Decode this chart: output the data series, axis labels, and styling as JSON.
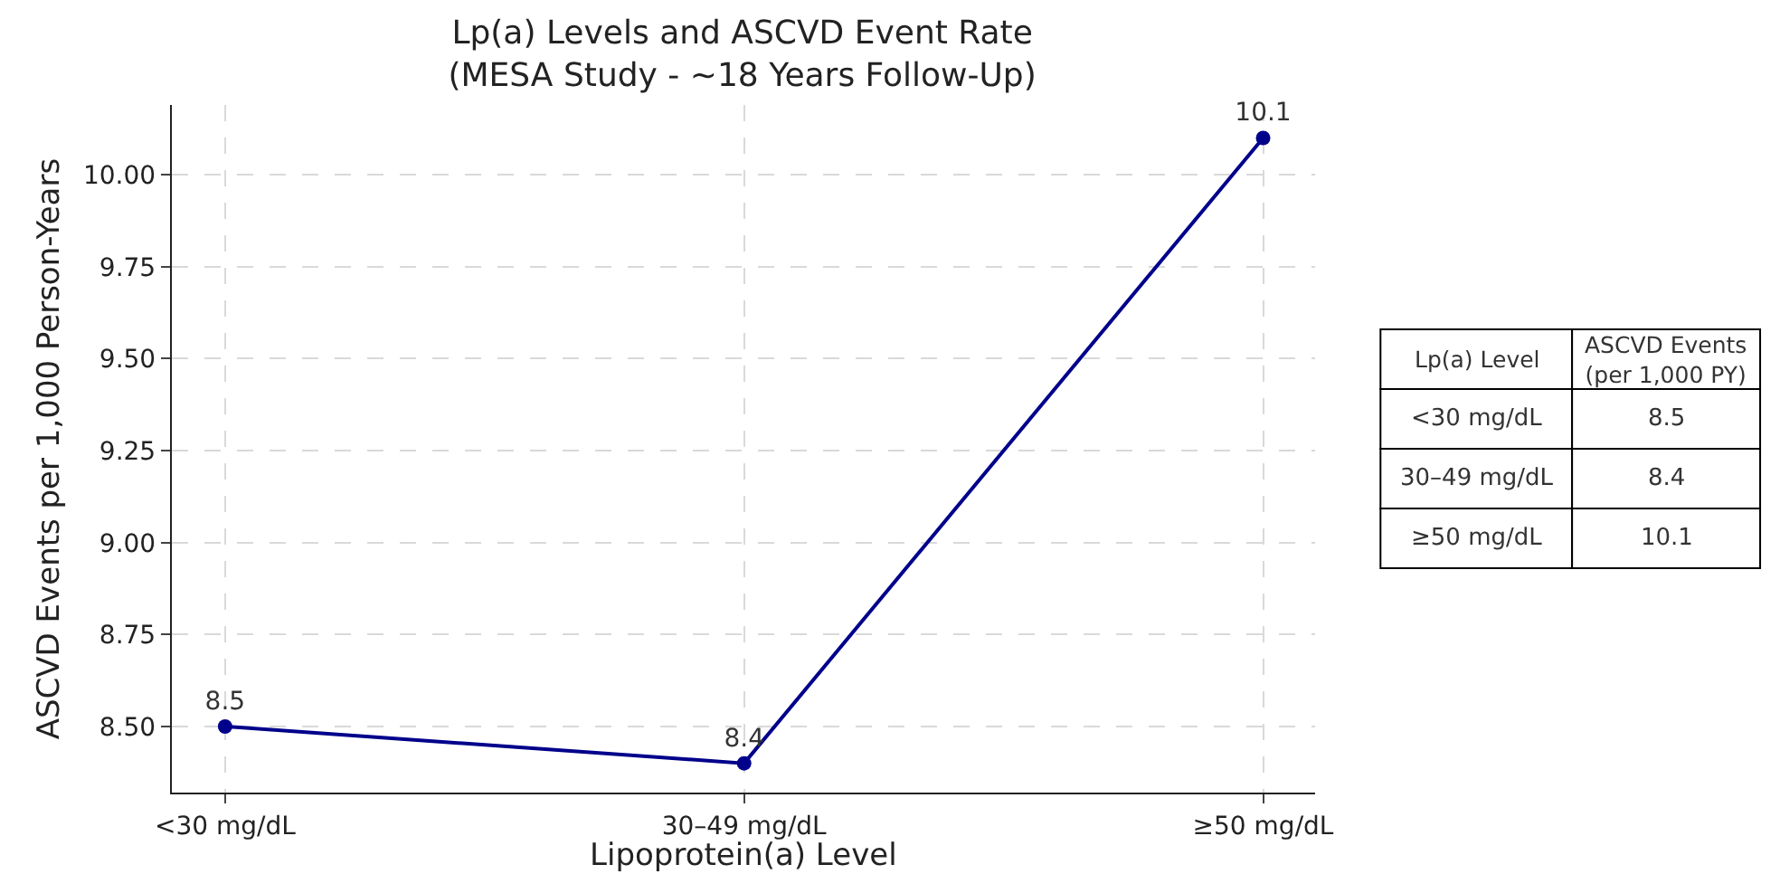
{
  "chart_data": [
    {
      "type": "line",
      "title": "Lp(a) Levels and ASCVD Event Rate\n(MESA Study - ~18 Years Follow-Up)",
      "xlabel": "Lipoprotein(a) Level",
      "ylabel": "ASCVD Events per 1,000 Person-Years",
      "categories": [
        "<30 mg/dL",
        "30–49 mg/dL",
        "≥50 mg/dL"
      ],
      "series": [
        {
          "color": "#00008b",
          "values": [
            8.5,
            8.4,
            10.1
          ]
        }
      ],
      "ylim": [
        8.32,
        10.19
      ],
      "yticks": [
        {
          "value": 8.5,
          "label": "8.50"
        },
        8.75,
        {
          "value": 9.0,
          "label": "9.00"
        },
        9.25,
        {
          "value": 9.5,
          "label": "9.50"
        },
        9.75,
        {
          "value": 10.0,
          "label": "10.00"
        }
      ],
      "grid": true,
      "marker": "circle",
      "line_style": "solid",
      "data_labels": true
    },
    {
      "type": "other",
      "categories": [
        "<30 mg/dL",
        "30–49 mg/dL",
        "≥50 mg/dL"
      ],
      "values": [
        8.5,
        8.4,
        10.1
      ],
      "data_labels": true,
      "annotations": [
        "Lp(a) Level",
        "ASCVD Events\n(per 1,000 PY)"
      ]
    }
  ]
}
